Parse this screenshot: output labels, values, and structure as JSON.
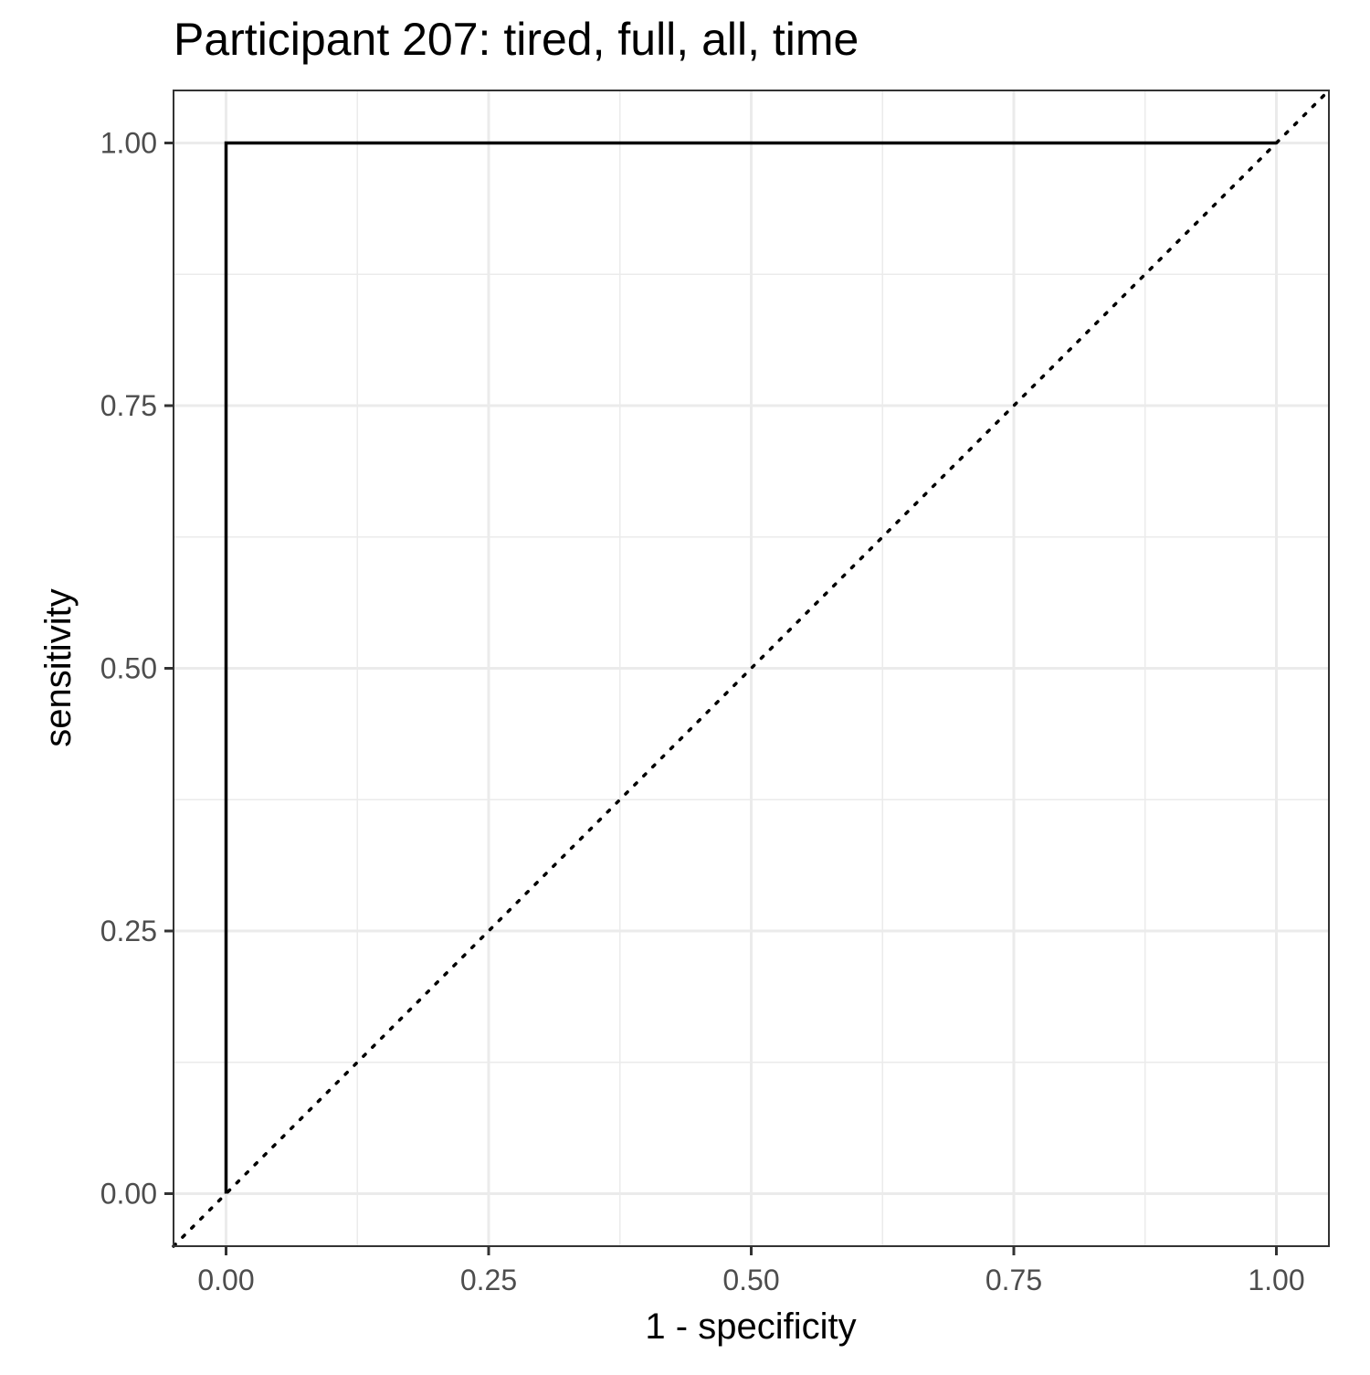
{
  "chart_data": {
    "type": "line",
    "title": "Participant 207: tired, full, all, time",
    "xlabel": "1 - specificity",
    "ylabel": "sensitivity",
    "xlim": [
      -0.05,
      1.05
    ],
    "ylim": [
      -0.05,
      1.05
    ],
    "x_ticks": [
      0,
      0.25,
      0.5,
      0.75,
      1
    ],
    "x_tick_labels": [
      "0.00",
      "0.25",
      "0.50",
      "0.75",
      "1.00"
    ],
    "y_ticks": [
      0,
      0.25,
      0.5,
      0.75,
      1
    ],
    "y_tick_labels": [
      "0.00",
      "0.25",
      "0.50",
      "0.75",
      "1.00"
    ],
    "grid": true,
    "series": [
      {
        "style": "solid",
        "color": "#000000",
        "x": [
          0,
          0,
          1
        ],
        "y": [
          0,
          1,
          1
        ]
      },
      {
        "style": "dotted",
        "color": "#000000",
        "x": [
          -0.05,
          1.05
        ],
        "y": [
          -0.05,
          1.05
        ]
      }
    ]
  }
}
